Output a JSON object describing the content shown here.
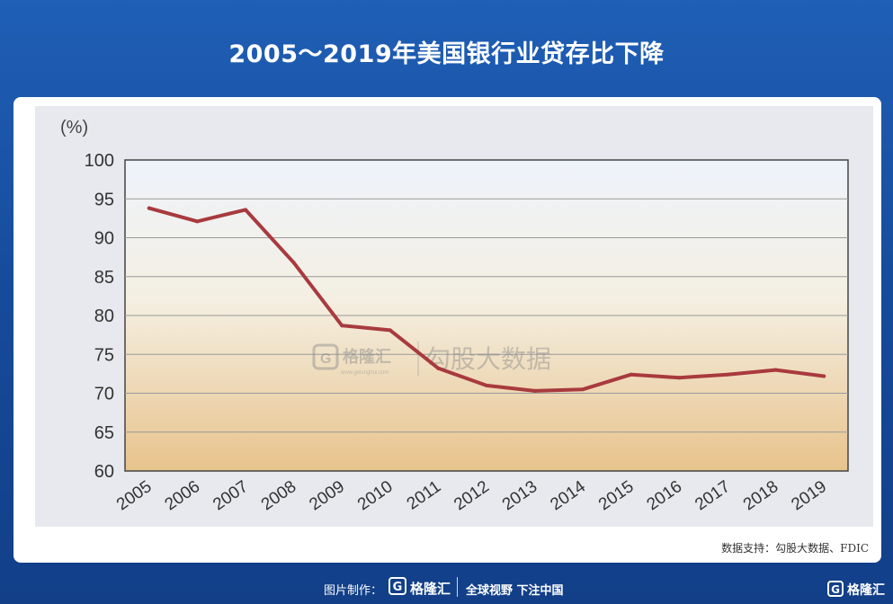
{
  "header": {
    "title": "2005～2019年美国银行业贷存比下降"
  },
  "chart_data": {
    "type": "line",
    "title": "2005～2019年美国银行业贷存比下降",
    "ylabel": "(%)",
    "xlabel": "",
    "categories": [
      "2005",
      "2006",
      "2007",
      "2008",
      "2009",
      "2010",
      "2011",
      "2012",
      "2013",
      "2014",
      "2015",
      "2016",
      "2017",
      "2018",
      "2019"
    ],
    "values": [
      93.8,
      92.1,
      93.6,
      86.8,
      78.7,
      78.1,
      73.2,
      71.0,
      70.3,
      70.5,
      72.4,
      72.0,
      72.4,
      73.0,
      72.2
    ],
    "ylim": [
      60,
      100
    ],
    "yticks": [
      60,
      65,
      70,
      75,
      80,
      85,
      90,
      95,
      100
    ],
    "grid": true,
    "line_color": "#a83a3e"
  },
  "watermark": {
    "brand": "格隆汇",
    "site": "www.gelonghui.com",
    "text": "勾股大数据"
  },
  "source": "数据支持：勾股大数据、FDIC",
  "footer": {
    "credit": "图片制作：",
    "brand_mark": "G",
    "brand": "格隆汇",
    "slogan": "全球视野 下注中国",
    "corner_brand": "格隆汇"
  }
}
